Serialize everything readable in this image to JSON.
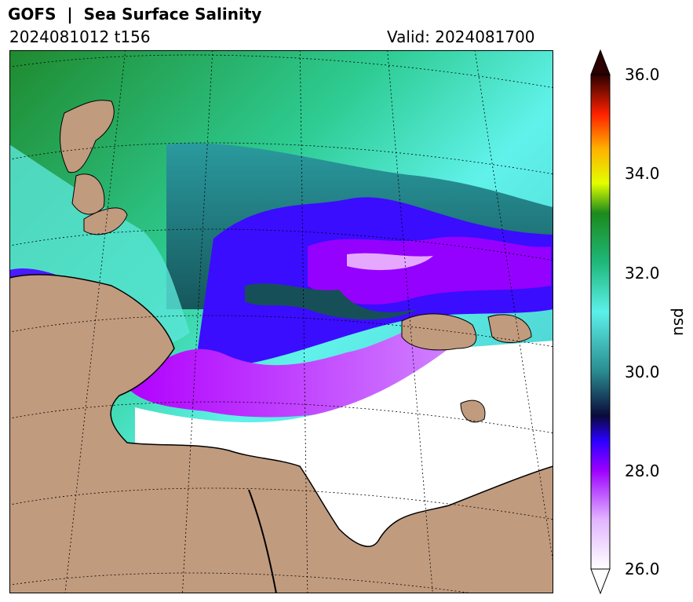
{
  "title": "GOFS  |  Sea Surface Salinity",
  "run": "2024081012 t156",
  "valid": "Valid: 2024081700",
  "colorbar": {
    "ticks": [
      "36.0",
      "34.0",
      "32.0",
      "30.0",
      "28.0",
      "26.0"
    ],
    "unit": "psu",
    "min": 26.0,
    "max": 36.0
  },
  "colors": {
    "land": "#c19b7e",
    "ice_or_low": "#ffffff"
  }
}
